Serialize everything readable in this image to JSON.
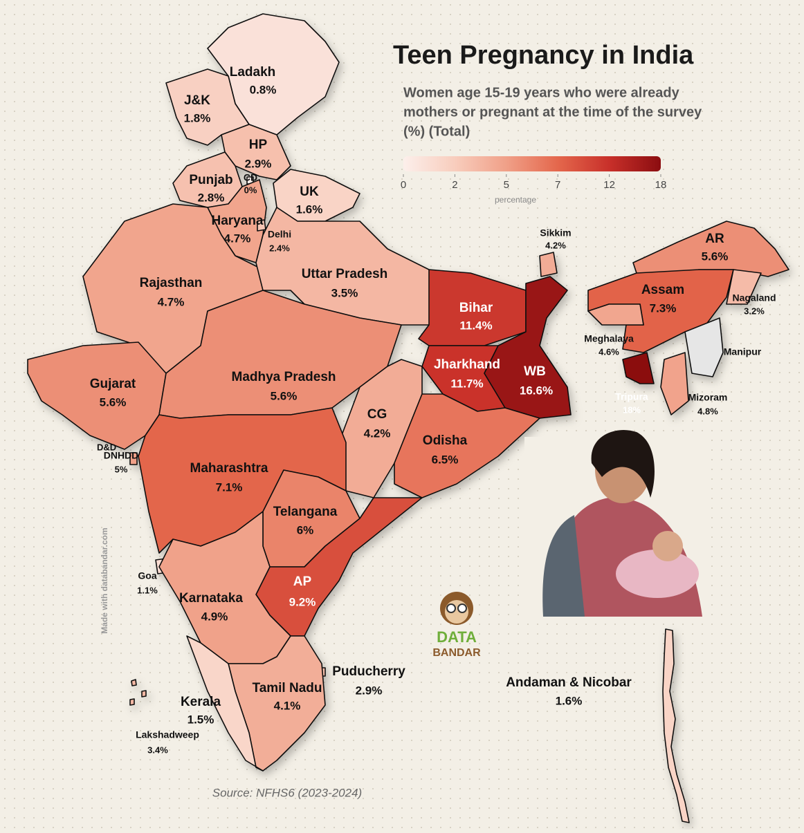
{
  "chart_data": {
    "type": "choropleth",
    "title": "Teen Pregnancy in India",
    "subtitle": [
      "Women age 15-19 years who were already",
      "mothers or pregnant at the time of the survey",
      "(%) (Total)"
    ],
    "categories": [
      "Ladakh",
      "J&K",
      "HP",
      "Punjab",
      "CD",
      "UK",
      "Haryana",
      "Delhi",
      "Rajasthan",
      "Uttar Pradesh",
      "Bihar",
      "Sikkim",
      "AR",
      "Assam",
      "Nagaland",
      "Meghalaya",
      "Manipur",
      "Tripura",
      "Mizoram",
      "Gujarat",
      "DNHDD",
      "Madhya Pradesh",
      "Jharkhand",
      "WB",
      "CG",
      "Odisha",
      "Maharashtra",
      "Telangana",
      "Goa",
      "AP",
      "Karnataka",
      "Puducherry",
      "Tamil Nadu",
      "Kerala",
      "Lakshadweep",
      "Andaman & Nicobar"
    ],
    "values": [
      0.8,
      1.8,
      2.9,
      2.8,
      0,
      1.6,
      4.7,
      2.4,
      4.7,
      3.5,
      11.4,
      4.2,
      5.6,
      7.3,
      3.2,
      4.6,
      null,
      18,
      4.8,
      5.6,
      5,
      5.6,
      11.7,
      16.6,
      4.2,
      6.5,
      7.1,
      6,
      1.1,
      9.2,
      4.9,
      2.9,
      4.1,
      1.5,
      3.4,
      1.6
    ],
    "value_labels": [
      "0.8%",
      "1.8%",
      "2.9%",
      "2.8%",
      "0%",
      "1.6%",
      "4.7%",
      "2.4%",
      "4.7%",
      "3.5%",
      "11.4%",
      "4.2%",
      "5.6%",
      "7.3%",
      "3.2%",
      "4.6%",
      null,
      "18%",
      "4.8%",
      "5.6%",
      "5%",
      "5.6%",
      "11.7%",
      "16.6%",
      "4.2%",
      "6.5%",
      "7.1%",
      "6%",
      "1.1%",
      "9.2%",
      "4.9%",
      "2.9%",
      "4.1%",
      "1.5%",
      "3.4%",
      "1.6%"
    ],
    "annotations": [
      "D&D"
    ],
    "colorbar": {
      "ticks": [
        0,
        2,
        5,
        7,
        12,
        18
      ],
      "colors": [
        "#fcefeb",
        "#f8cdbd",
        "#f0a088",
        "#e4674c",
        "#c8302a",
        "#8b0d10"
      ],
      "label": "percentage"
    },
    "source": "Source: NFHS6 (2023-2024)",
    "credit": "Made with databandar.com",
    "logo": [
      "DATA",
      "BANDAR"
    ]
  }
}
